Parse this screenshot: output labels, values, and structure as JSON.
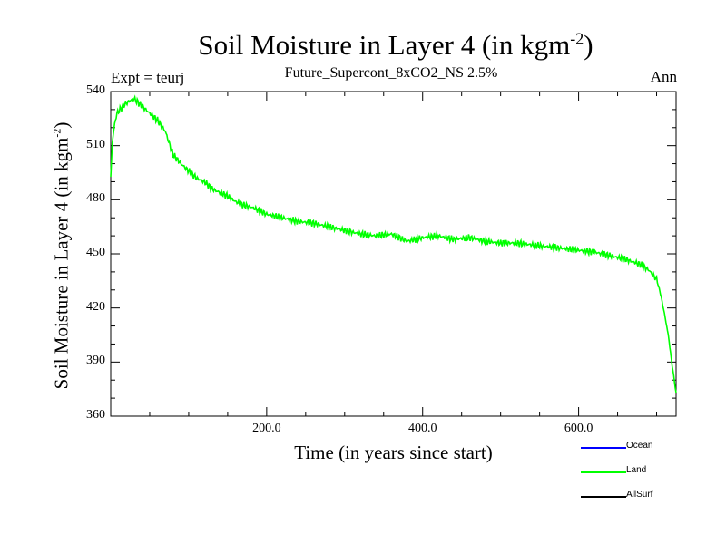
{
  "chart_data": {
    "type": "line",
    "title": "Soil Moisture in Layer 4 (in kgm",
    "title_superscript": "-2",
    "title_close": ")",
    "subtitle": "Future_Supercont_8xCO2_NS 2.5%",
    "left_annotation": "Expt = teurj",
    "right_annotation": "Ann",
    "xlabel": "Time (in years since start)",
    "ylabel": "Soil Moisture in Layer 4 (in kgm",
    "ylabel_superscript": "-2",
    "ylabel_close": ")",
    "xlim": [
      0,
      725
    ],
    "ylim": [
      360,
      540
    ],
    "x_ticks": [
      200,
      400,
      600
    ],
    "x_tick_labels": [
      "200.0",
      "400.0",
      "600.0"
    ],
    "y_ticks": [
      360,
      390,
      420,
      450,
      480,
      510,
      540
    ],
    "y_tick_labels": [
      "360",
      "390",
      "420",
      "450",
      "480",
      "510",
      "540"
    ],
    "legend": [
      {
        "name": "Ocean",
        "color": "#0000ff"
      },
      {
        "name": "Land",
        "color": "#00ff00"
      },
      {
        "name": "AllSurf",
        "color": "#000000"
      }
    ],
    "series": [
      {
        "name": "Land",
        "color": "#00ff00",
        "x": [
          0,
          2,
          5,
          8,
          12,
          18,
          25,
          30,
          35,
          40,
          50,
          60,
          70,
          80,
          90,
          100,
          110,
          120,
          130,
          140,
          150,
          160,
          170,
          180,
          190,
          200,
          220,
          240,
          260,
          280,
          300,
          320,
          340,
          360,
          380,
          400,
          420,
          440,
          460,
          480,
          500,
          520,
          540,
          560,
          580,
          600,
          620,
          640,
          660,
          680,
          690,
          700,
          705,
          710,
          715,
          720,
          725
        ],
        "y": [
          492,
          512,
          522,
          528,
          530,
          533,
          535,
          536,
          534,
          532,
          528,
          524,
          518,
          505,
          500,
          496,
          492,
          490,
          486,
          484,
          482,
          479,
          477,
          476,
          474,
          472,
          470,
          468,
          467,
          465,
          463,
          461,
          460,
          461,
          457,
          459,
          460,
          458,
          459,
          457,
          456,
          456,
          455,
          454,
          453,
          452,
          451,
          449,
          447,
          444,
          441,
          436,
          428,
          417,
          405,
          388,
          373
        ]
      }
    ]
  }
}
